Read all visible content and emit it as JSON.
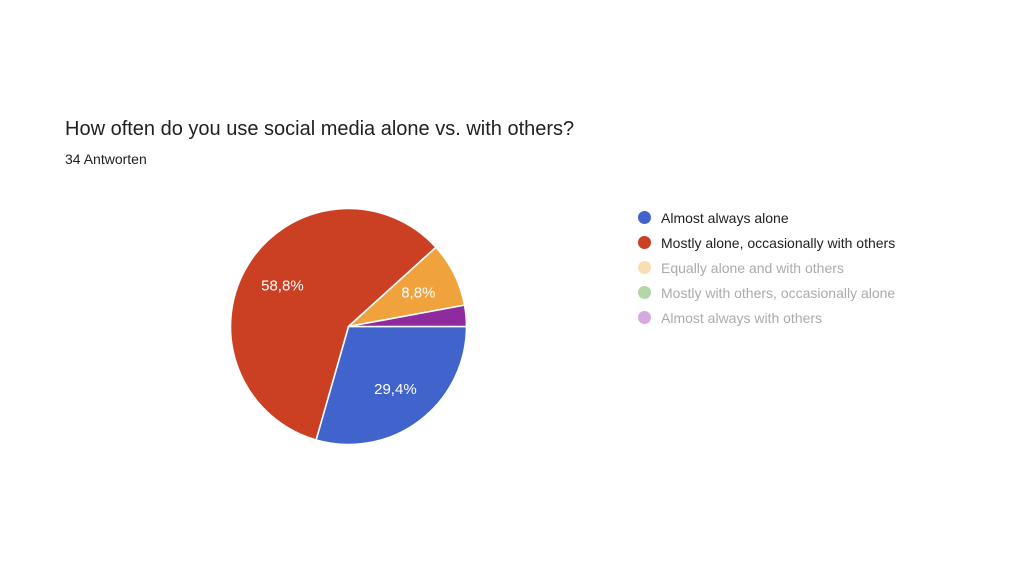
{
  "header": {
    "title": "How often do you use social media alone vs. with others?",
    "subtitle": "34 Antworten"
  },
  "chart_data": {
    "type": "pie",
    "title": "How often do you use social media alone vs. with others?",
    "responses_label": "34 Antworten",
    "total_responses": 34,
    "legend_position": "right",
    "start_angle_deg": 0,
    "direction": "clockwise",
    "slices": [
      {
        "label": "Almost always alone",
        "value_pct": 29.4,
        "pct_label": "29,4%",
        "color": "#4163cc",
        "legend_dot_color": "#4163cc",
        "muted": false
      },
      {
        "label": "Mostly alone, occasionally with others",
        "value_pct": 58.8,
        "pct_label": "58,8%",
        "color": "#cb4023",
        "legend_dot_color": "#cb4023",
        "muted": false
      },
      {
        "label": "Equally alone and with others",
        "value_pct": 8.8,
        "pct_label": "8,8%",
        "color": "#f0a23c",
        "legend_dot_color": "#f8deb0",
        "muted": true
      },
      {
        "label": "Mostly with others, occasionally alone",
        "value_pct": 0,
        "pct_label": "",
        "color": "#109618",
        "legend_dot_color": "#b3d6aa",
        "muted": true
      },
      {
        "label": "Almost always with others",
        "value_pct": 2.9,
        "pct_label": "",
        "color": "#8e2b9e",
        "legend_dot_color": "#d6aade",
        "muted": true
      }
    ]
  }
}
